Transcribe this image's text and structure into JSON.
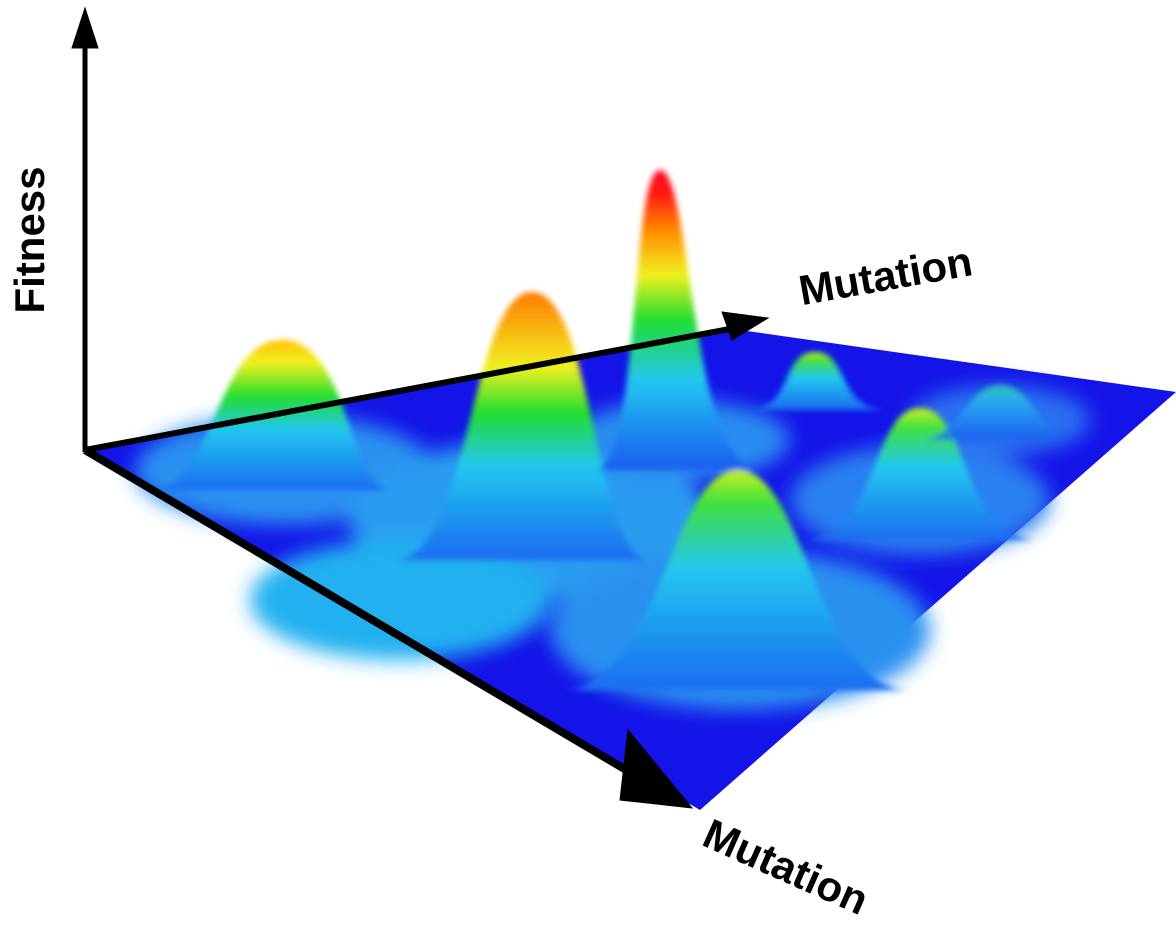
{
  "axes": {
    "vertical": "Fitness",
    "back": "Mutation",
    "front": "Mutation"
  }
}
